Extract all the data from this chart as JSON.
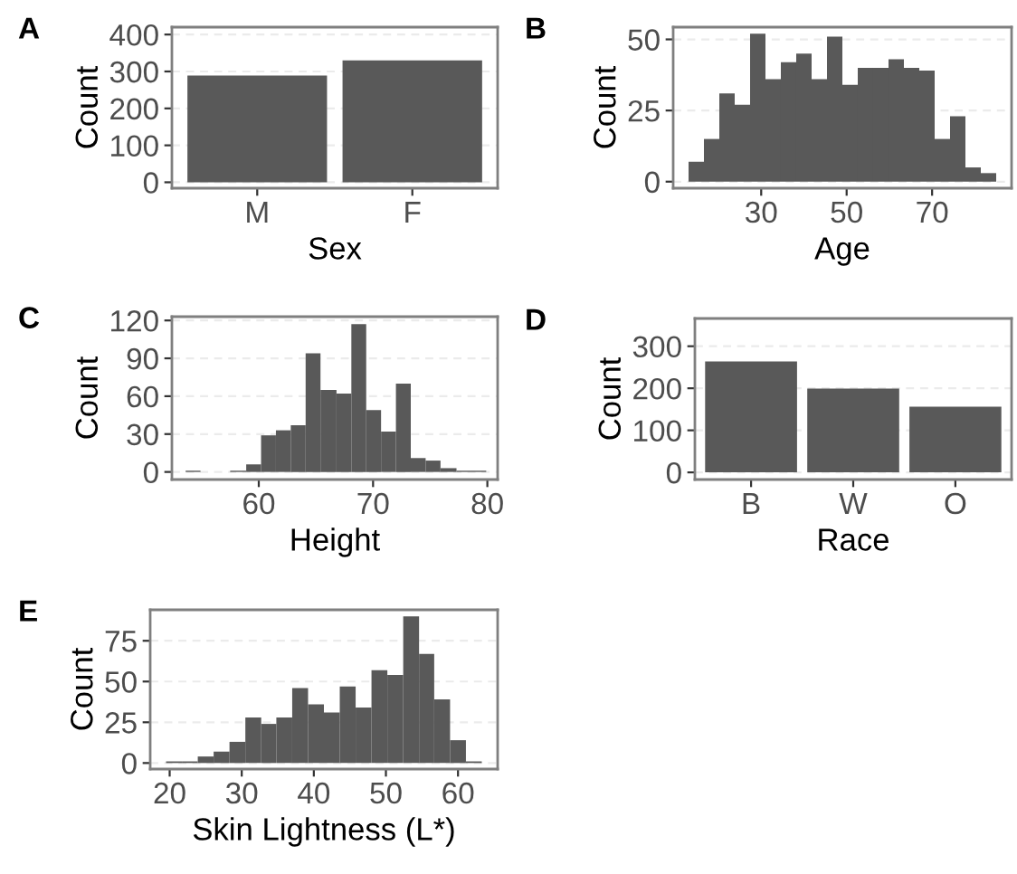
{
  "chart_data": [
    {
      "type": "bar",
      "title": "A",
      "xlabel": "Sex",
      "ylabel": "Count",
      "categories": [
        "M",
        "F"
      ],
      "values": [
        289,
        330
      ],
      "color": "#595959",
      "ylim": [
        -16,
        420
      ],
      "yticks": [
        0,
        100,
        200,
        300,
        400
      ],
      "grid": "y"
    },
    {
      "type": "histogram",
      "title": "B",
      "xlabel": "Age",
      "ylabel": "Count",
      "bins": [
        13,
        16.6,
        20.2,
        23.8,
        27.4,
        31,
        34.6,
        38.2,
        41.8,
        45.4,
        49,
        52.6,
        56.2,
        59.8,
        63.4,
        67,
        70.6,
        74.2,
        77.8,
        81.4,
        85
      ],
      "values": [
        7,
        15,
        31,
        27,
        52,
        36,
        42,
        45,
        36,
        51,
        34,
        40,
        40,
        43,
        40,
        39,
        15,
        23,
        5,
        3
      ],
      "color": "#595959",
      "xlim": [
        9.4,
        88.6
      ],
      "xticks": [
        30,
        50,
        70
      ],
      "ylim": [
        -2.3,
        54.3
      ],
      "yticks": [
        0,
        25,
        50
      ],
      "grid": "y"
    },
    {
      "type": "histogram",
      "title": "C",
      "xlabel": "Height",
      "ylabel": "Count",
      "bins": [
        53.6,
        54.9,
        57.5,
        58.9,
        60.2,
        61.5,
        62.8,
        64.1,
        65.4,
        66.8,
        68.1,
        69.4,
        70.7,
        72,
        73.3,
        74.6,
        75.9,
        77.3,
        78.6,
        79.9
      ],
      "values": [
        1,
        0,
        1,
        6,
        29,
        33,
        37,
        94,
        65,
        62,
        117,
        49,
        32,
        70,
        11,
        9,
        3,
        1,
        1
      ],
      "color": "#595959",
      "xlim": [
        52.4,
        80.9
      ],
      "xticks": [
        60,
        70,
        80
      ],
      "ylim": [
        -6,
        123
      ],
      "yticks": [
        0,
        30,
        60,
        90,
        120
      ],
      "grid": "y"
    },
    {
      "type": "bar",
      "title": "D",
      "xlabel": "Race",
      "ylabel": "Count",
      "categories": [
        "B",
        "W",
        "O"
      ],
      "values": [
        264,
        199,
        156
      ],
      "color": "#595959",
      "ylim": [
        -17,
        366
      ],
      "yticks": [
        0,
        100,
        200,
        300
      ],
      "grid": "y"
    },
    {
      "type": "histogram",
      "title": "E",
      "xlabel": "Skin Lightness (L*)",
      "ylabel": "Count",
      "bins": [
        19.5,
        21.7,
        23.9,
        26.1,
        28.3,
        30.5,
        32.7,
        34.8,
        37,
        39.2,
        41.4,
        43.6,
        45.8,
        48,
        50.2,
        52.4,
        54.6,
        56.7,
        58.9,
        61.1,
        63.3
      ],
      "values": [
        1,
        1,
        4,
        7,
        13,
        28,
        24,
        28,
        46,
        36,
        31,
        47,
        34,
        57,
        54,
        90,
        67,
        39,
        14,
        1
      ],
      "color": "#595959",
      "xlim": [
        17.3,
        65.5
      ],
      "xticks": [
        20,
        30,
        40,
        50,
        60
      ],
      "ylim": [
        -3.7,
        94
      ],
      "yticks": [
        0,
        25,
        50,
        75
      ],
      "grid": "y"
    }
  ]
}
